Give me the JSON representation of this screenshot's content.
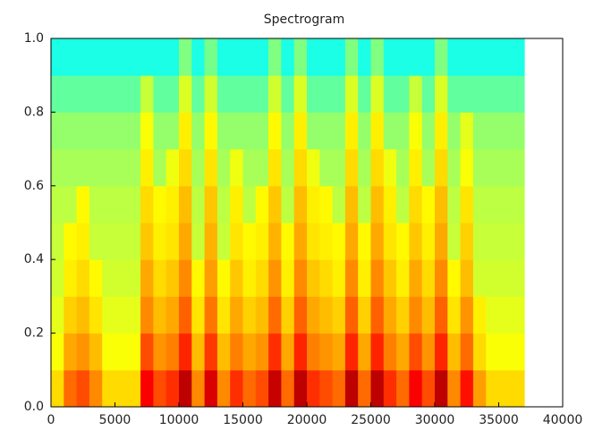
{
  "chart_data": {
    "type": "spectrogram",
    "title": "Spectrogram",
    "colormap": "jet",
    "xlim": [
      0,
      40000
    ],
    "ylim": [
      0,
      1
    ],
    "xticks": [
      0,
      5000,
      10000,
      15000,
      20000,
      25000,
      30000,
      35000,
      40000
    ],
    "yticks": [
      {
        "value": 0,
        "label": "0.0"
      },
      0.2,
      0.4,
      0.6,
      0.8,
      {
        "value": 1,
        "label": "1.0"
      }
    ],
    "x_bins": [
      0,
      1000,
      2000,
      3000,
      4000,
      5000,
      6000,
      7000,
      8000,
      9000,
      10000,
      11000,
      12000,
      13000,
      14000,
      15000,
      16000,
      17000,
      18000,
      19000,
      20000,
      21000,
      22000,
      23000,
      24000,
      25000,
      26000,
      27000,
      28000,
      29000,
      30000,
      31000,
      32000,
      33000,
      34000,
      35000,
      36000,
      37000
    ],
    "y_bins": [
      0,
      0.1,
      0.2,
      0.3,
      0.4,
      0.5,
      0.6,
      0.7,
      0.8,
      0.9,
      1.0
    ],
    "values": [
      [
        0.66,
        0.77,
        0.8,
        0.74,
        0.66,
        0.66,
        0.66,
        0.88,
        0.8,
        0.83,
        0.94,
        0.74,
        0.91,
        0.74,
        0.83,
        0.77,
        0.8,
        0.93,
        0.77,
        0.94,
        0.83,
        0.8,
        0.77,
        0.94,
        0.77,
        0.94,
        0.83,
        0.77,
        0.88,
        0.8,
        0.94,
        0.74,
        0.86,
        0.72,
        0.66,
        0.66,
        0.66
      ],
      [
        0.62,
        0.71,
        0.73,
        0.69,
        0.62,
        0.62,
        0.62,
        0.8,
        0.73,
        0.75,
        0.84,
        0.69,
        0.82,
        0.69,
        0.75,
        0.71,
        0.73,
        0.83,
        0.71,
        0.84,
        0.75,
        0.73,
        0.71,
        0.84,
        0.71,
        0.84,
        0.75,
        0.71,
        0.8,
        0.73,
        0.84,
        0.69,
        0.77,
        0.66,
        0.62,
        0.62,
        0.62
      ],
      [
        0.6,
        0.67,
        0.69,
        0.65,
        0.6,
        0.6,
        0.6,
        0.74,
        0.69,
        0.71,
        0.78,
        0.65,
        0.76,
        0.65,
        0.71,
        0.67,
        0.69,
        0.77,
        0.67,
        0.78,
        0.71,
        0.69,
        0.67,
        0.78,
        0.67,
        0.78,
        0.71,
        0.67,
        0.74,
        0.69,
        0.78,
        0.65,
        0.73,
        0.64,
        0.6,
        0.6,
        0.6
      ],
      [
        0.58,
        0.64,
        0.66,
        0.63,
        0.58,
        0.58,
        0.58,
        0.71,
        0.66,
        0.68,
        0.74,
        0.63,
        0.72,
        0.63,
        0.68,
        0.64,
        0.66,
        0.73,
        0.64,
        0.74,
        0.68,
        0.66,
        0.64,
        0.74,
        0.64,
        0.74,
        0.68,
        0.64,
        0.71,
        0.66,
        0.74,
        0.63,
        0.69,
        0.58,
        0.58,
        0.58,
        0.58
      ],
      [
        0.57,
        0.63,
        0.64,
        0.57,
        0.57,
        0.57,
        0.57,
        0.68,
        0.64,
        0.65,
        0.71,
        0.57,
        0.7,
        0.57,
        0.65,
        0.63,
        0.64,
        0.7,
        0.63,
        0.71,
        0.65,
        0.64,
        0.63,
        0.71,
        0.63,
        0.71,
        0.65,
        0.63,
        0.68,
        0.64,
        0.71,
        0.57,
        0.67,
        0.57,
        0.57,
        0.57,
        0.57
      ],
      [
        0.56,
        0.56,
        0.63,
        0.56,
        0.56,
        0.56,
        0.56,
        0.66,
        0.63,
        0.64,
        0.69,
        0.56,
        0.68,
        0.56,
        0.64,
        0.56,
        0.63,
        0.68,
        0.56,
        0.69,
        0.64,
        0.63,
        0.56,
        0.69,
        0.56,
        0.69,
        0.64,
        0.56,
        0.66,
        0.63,
        0.69,
        0.56,
        0.65,
        0.56,
        0.56,
        0.56,
        0.56
      ],
      [
        0.54,
        0.54,
        0.54,
        0.54,
        0.54,
        0.54,
        0.54,
        0.64,
        0.54,
        0.61,
        0.66,
        0.54,
        0.65,
        0.54,
        0.61,
        0.54,
        0.54,
        0.65,
        0.54,
        0.66,
        0.61,
        0.54,
        0.54,
        0.66,
        0.54,
        0.66,
        0.61,
        0.54,
        0.64,
        0.54,
        0.66,
        0.54,
        0.62,
        0.54,
        0.54,
        0.54,
        0.54
      ],
      [
        0.52,
        0.52,
        0.52,
        0.52,
        0.52,
        0.52,
        0.52,
        0.62,
        0.52,
        0.52,
        0.64,
        0.52,
        0.63,
        0.52,
        0.52,
        0.52,
        0.52,
        0.63,
        0.52,
        0.64,
        0.52,
        0.52,
        0.52,
        0.64,
        0.52,
        0.64,
        0.52,
        0.52,
        0.62,
        0.52,
        0.64,
        0.52,
        0.6,
        0.52,
        0.52,
        0.52,
        0.52
      ],
      [
        0.47,
        0.47,
        0.47,
        0.47,
        0.47,
        0.47,
        0.47,
        0.57,
        0.47,
        0.47,
        0.59,
        0.47,
        0.58,
        0.47,
        0.47,
        0.47,
        0.47,
        0.58,
        0.47,
        0.59,
        0.47,
        0.47,
        0.47,
        0.59,
        0.47,
        0.59,
        0.47,
        0.47,
        0.57,
        0.47,
        0.59,
        0.47,
        0.47,
        0.47,
        0.47,
        0.47,
        0.47
      ],
      [
        0.4,
        0.4,
        0.4,
        0.4,
        0.4,
        0.4,
        0.4,
        0.4,
        0.4,
        0.4,
        0.5,
        0.4,
        0.49,
        0.4,
        0.4,
        0.4,
        0.4,
        0.5,
        0.4,
        0.5,
        0.4,
        0.4,
        0.4,
        0.5,
        0.4,
        0.5,
        0.4,
        0.4,
        0.4,
        0.4,
        0.5,
        0.4,
        0.4,
        0.4,
        0.4,
        0.4,
        0.4
      ]
    ]
  }
}
